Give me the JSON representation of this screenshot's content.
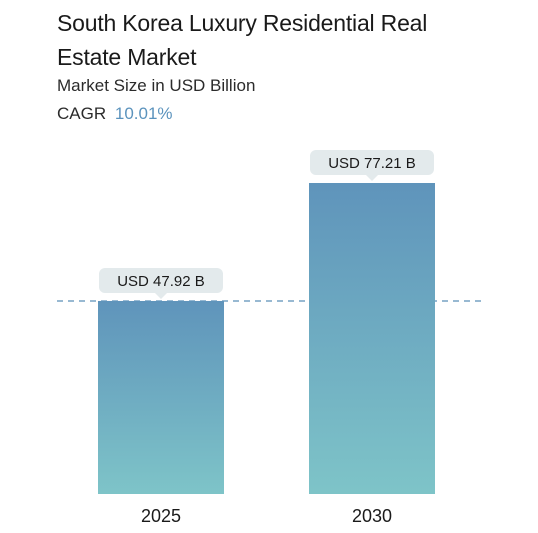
{
  "header": {
    "title": "South Korea Luxury Residential Real Estate Market",
    "subtitle": "Market Size in USD Billion",
    "cagr_label": "CAGR",
    "cagr_value": "10.01%"
  },
  "colors": {
    "bar_top": "#5f94bb",
    "bar_bottom": "#7ec4c8",
    "dashed_line": "#5b8fb8",
    "label_bg": "#e3eaec",
    "cagr_accent": "#5b93bd"
  },
  "chart_data": {
    "type": "bar",
    "categories": [
      "2025",
      "2030"
    ],
    "values": [
      47.92,
      77.21
    ],
    "data_labels": [
      "USD 47.92 B",
      "USD 77.21 B"
    ],
    "unit": "USD Billion",
    "ylim": [
      0,
      77.21
    ],
    "reference_line": 47.92,
    "grid": false,
    "legend": "none"
  }
}
